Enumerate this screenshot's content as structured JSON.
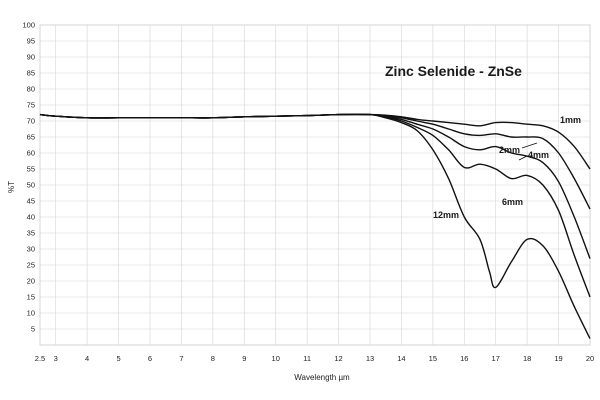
{
  "chart_data": {
    "type": "line",
    "title": "Zinc Selenide - ZnSe",
    "xlabel": "Wavelength µm",
    "ylabel": "%T",
    "xlim": [
      2.5,
      20
    ],
    "ylim": [
      0,
      100
    ],
    "xticks": [
      2.5,
      3,
      4,
      5,
      6,
      7,
      8,
      9,
      10,
      11,
      12,
      13,
      14,
      15,
      16,
      17,
      18,
      19,
      20
    ],
    "yticks": [
      5,
      10,
      15,
      20,
      25,
      30,
      35,
      40,
      45,
      50,
      55,
      60,
      65,
      70,
      75,
      80,
      85,
      90,
      95,
      100
    ],
    "grid": true,
    "line_color": "#111111",
    "series": [
      {
        "name": "1mm",
        "x": [
          2.5,
          3,
          4,
          5,
          6,
          7,
          8,
          9,
          10,
          11,
          12,
          13,
          13.5,
          14,
          14.5,
          15,
          15.5,
          16,
          16.5,
          17,
          17.5,
          18,
          18.5,
          19,
          19.5,
          20
        ],
        "y": [
          72,
          71.5,
          71,
          71,
          71,
          71,
          71,
          71.3,
          71.5,
          71.7,
          72,
          72,
          71.8,
          71.3,
          70.5,
          70,
          69.5,
          69,
          68.5,
          69.5,
          69.5,
          69,
          68.5,
          66.5,
          62,
          55
        ]
      },
      {
        "name": "2mm",
        "x": [
          2.5,
          3,
          4,
          5,
          6,
          7,
          8,
          9,
          10,
          11,
          12,
          13,
          13.5,
          14,
          14.5,
          15,
          15.5,
          16,
          16.5,
          17,
          17.5,
          18,
          18.5,
          19,
          19.5,
          20
        ],
        "y": [
          72,
          71.5,
          71,
          71,
          71,
          71,
          71,
          71.3,
          71.5,
          71.7,
          72,
          72,
          71.7,
          71,
          70,
          69,
          67.5,
          66,
          65.5,
          66,
          65,
          65,
          64.5,
          60,
          52,
          42.5
        ]
      },
      {
        "name": "4mm",
        "x": [
          2.5,
          3,
          4,
          5,
          6,
          7,
          8,
          9,
          10,
          11,
          12,
          13,
          13.5,
          14,
          14.5,
          15,
          15.5,
          16,
          16.5,
          17,
          17.5,
          18,
          18.5,
          19,
          19.5,
          20
        ],
        "y": [
          72,
          71.5,
          71,
          71,
          71,
          71,
          71,
          71.3,
          71.5,
          71.7,
          72,
          72,
          71.5,
          70.5,
          69,
          67.5,
          65,
          62,
          61,
          62,
          60,
          59,
          57,
          51,
          40,
          27
        ]
      },
      {
        "name": "6mm",
        "x": [
          2.5,
          3,
          4,
          5,
          6,
          7,
          8,
          9,
          10,
          11,
          12,
          13,
          13.5,
          14,
          14.5,
          15,
          15.5,
          16,
          16.5,
          17,
          17.5,
          18,
          18.5,
          19,
          19.5,
          20
        ],
        "y": [
          72,
          71.5,
          71,
          71,
          71,
          71,
          71,
          71.3,
          71.5,
          71.7,
          72,
          72,
          71.3,
          70,
          68,
          65.5,
          61,
          55.5,
          56.5,
          55,
          52,
          53,
          50,
          42,
          28,
          15
        ]
      },
      {
        "name": "12mm",
        "x": [
          2.5,
          3,
          4,
          5,
          6,
          7,
          8,
          9,
          10,
          11,
          12,
          13,
          13.5,
          14,
          14.5,
          15,
          15.5,
          16,
          16.5,
          16.8,
          17,
          17.5,
          18,
          18.5,
          19,
          19.5,
          20
        ],
        "y": [
          72,
          71.5,
          71,
          71,
          71,
          71,
          71,
          71.3,
          71.5,
          71.7,
          72,
          72,
          71,
          69.5,
          67,
          61,
          52,
          40,
          33,
          23,
          18,
          26,
          33,
          31,
          23,
          12,
          2
        ]
      }
    ]
  }
}
